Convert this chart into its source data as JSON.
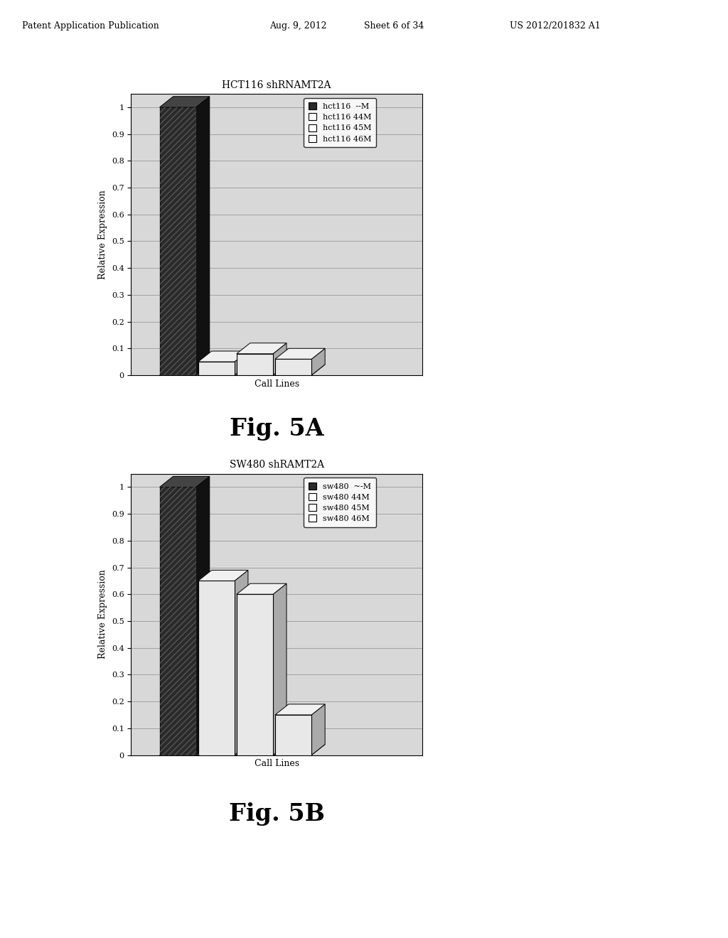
{
  "fig5a": {
    "title": "HCT116 shRNAMT2A",
    "xlabel": "Call Lines",
    "ylabel": "Relative Expression",
    "values": [
      1.0,
      0.05,
      0.08,
      0.06
    ],
    "legend_labels": [
      "hct116  --M",
      "hct116 44M",
      "hct116 45M",
      "hct116 46M"
    ],
    "bar_colors": [
      "#2a2a2a",
      "#e8e8e8",
      "#e8e8e8",
      "#e8e8e8"
    ],
    "yticks": [
      0,
      0.1,
      0.2,
      0.3,
      0.4,
      0.5,
      0.6,
      0.7,
      0.8,
      0.9,
      1
    ],
    "ylim": [
      0,
      1.05
    ],
    "fig_label": "Fig. 5A"
  },
  "fig5b": {
    "title": "SW480 shRAMT2A",
    "xlabel": "Call Lines",
    "ylabel": "Relative Expression",
    "values": [
      1.0,
      0.65,
      0.6,
      0.15
    ],
    "legend_labels": [
      "sw480  ~-M",
      "sw480 44M",
      "sw480 45M",
      "sw480 46M"
    ],
    "bar_colors": [
      "#2a2a2a",
      "#e8e8e8",
      "#e8e8e8",
      "#e8e8e8"
    ],
    "yticks": [
      0,
      0.1,
      0.2,
      0.3,
      0.4,
      0.5,
      0.6,
      0.7,
      0.8,
      0.9,
      1
    ],
    "ylim": [
      0,
      1.05
    ],
    "fig_label": "Fig. 5B"
  },
  "page_header": {
    "left": "Patent Application Publication",
    "center_date": "Aug. 9, 2012",
    "center_sheet": "Sheet 6 of 34",
    "right": "US 2012/201832 A1"
  },
  "background_color": "#ffffff"
}
